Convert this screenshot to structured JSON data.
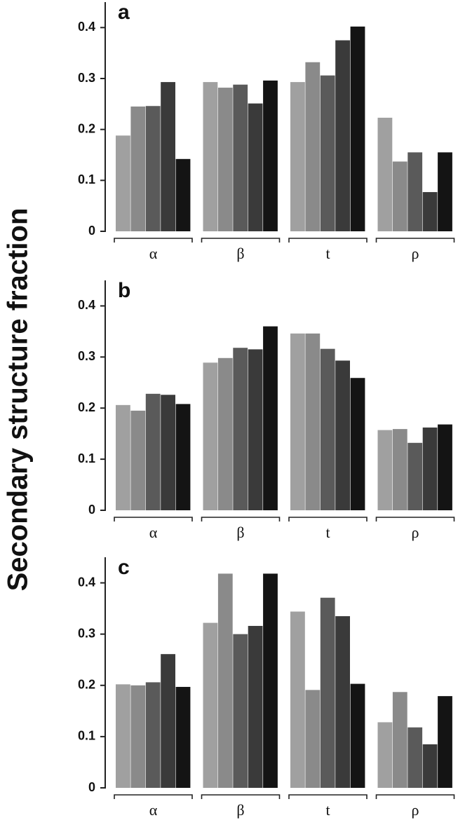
{
  "ylabel": "Secondary structure fraction",
  "chart_data": [
    {
      "type": "bar",
      "title": "a",
      "categories": [
        "α",
        "β",
        "t",
        "ρ"
      ],
      "series": [
        {
          "color": "#a0a0a0",
          "values": [
            0.188,
            0.293,
            0.293,
            0.223
          ]
        },
        {
          "color": "#8a8a8a",
          "values": [
            0.245,
            0.282,
            0.332,
            0.137
          ]
        },
        {
          "color": "#5a5a5a",
          "values": [
            0.246,
            0.288,
            0.306,
            0.155
          ]
        },
        {
          "color": "#3a3a3a",
          "values": [
            0.293,
            0.251,
            0.375,
            0.077
          ]
        },
        {
          "color": "#141414",
          "values": [
            0.142,
            0.296,
            0.402,
            0.155
          ]
        }
      ],
      "ylim": [
        0,
        0.45
      ],
      "yticks": [
        0,
        0.1,
        0.2,
        0.3,
        0.4
      ]
    },
    {
      "type": "bar",
      "title": "b",
      "categories": [
        "α",
        "β",
        "t",
        "ρ"
      ],
      "series": [
        {
          "color": "#a0a0a0",
          "values": [
            0.206,
            0.289,
            0.346,
            0.157
          ]
        },
        {
          "color": "#8a8a8a",
          "values": [
            0.195,
            0.298,
            0.346,
            0.159
          ]
        },
        {
          "color": "#5a5a5a",
          "values": [
            0.228,
            0.318,
            0.316,
            0.132
          ]
        },
        {
          "color": "#3a3a3a",
          "values": [
            0.226,
            0.315,
            0.293,
            0.162
          ]
        },
        {
          "color": "#141414",
          "values": [
            0.208,
            0.36,
            0.259,
            0.168
          ]
        }
      ],
      "ylim": [
        0,
        0.45
      ],
      "yticks": [
        0,
        0.1,
        0.2,
        0.3,
        0.4
      ]
    },
    {
      "type": "bar",
      "title": "c",
      "categories": [
        "α",
        "β",
        "t",
        "ρ"
      ],
      "series": [
        {
          "color": "#a0a0a0",
          "values": [
            0.202,
            0.322,
            0.344,
            0.128
          ]
        },
        {
          "color": "#8a8a8a",
          "values": [
            0.2,
            0.418,
            0.191,
            0.187
          ]
        },
        {
          "color": "#5a5a5a",
          "values": [
            0.206,
            0.3,
            0.371,
            0.118
          ]
        },
        {
          "color": "#3a3a3a",
          "values": [
            0.261,
            0.316,
            0.335,
            0.085
          ]
        },
        {
          "color": "#141414",
          "values": [
            0.197,
            0.418,
            0.203,
            0.179
          ]
        }
      ],
      "ylim": [
        0,
        0.45
      ],
      "yticks": [
        0,
        0.1,
        0.2,
        0.3,
        0.4
      ]
    }
  ]
}
